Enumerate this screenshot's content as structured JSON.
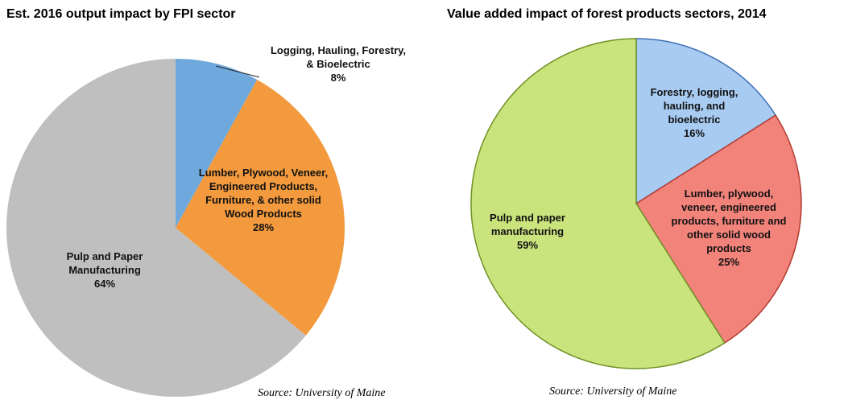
{
  "chart_data": [
    {
      "type": "pie",
      "title": "Est. 2016 output impact by FPI sector",
      "categories": [
        "Logging, Hauling, Forestry, & Bioelectric",
        "Lumber, Plywood, Veneer, Engineered Products, Furniture, & other solid Wood Products",
        "Pulp and Paper Manufacturing"
      ],
      "values": [
        8,
        28,
        64
      ],
      "value_labels": [
        "8%",
        "28%",
        "64%"
      ],
      "colors": [
        "#6fa8dc",
        "#f39a3e",
        "#bfbfbf"
      ],
      "source": "Source: University of Maine"
    },
    {
      "type": "pie",
      "title": "Value added impact of forest products sectors, 2014",
      "categories": [
        "Forestry, logging, hauling, and bioelectric",
        "Lumber, plywood, veneer, engineered products, furniture and other solid wood products",
        "Pulp and paper manufacturing"
      ],
      "values": [
        16,
        25,
        59
      ],
      "value_labels": [
        "16%",
        "25%",
        "59%"
      ],
      "colors": [
        "#a8cbf2",
        "#f2837a",
        "#c9e47c"
      ],
      "edge_colors": [
        "#3d6fb6",
        "#b23b30",
        "#6f9125"
      ],
      "source": "Source: University of Maine"
    }
  ]
}
